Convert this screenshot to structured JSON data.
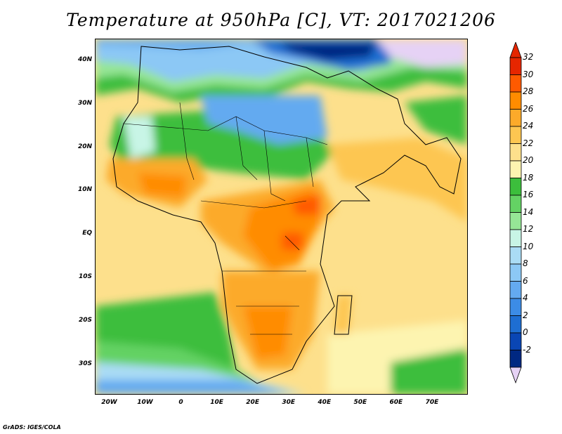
{
  "title": "Temperature at 950hPa [C], VT: 2017021206",
  "credit": "GrADS: IGES/COLA",
  "map": {
    "projection": "latlon",
    "lon_range": [
      -24,
      80
    ],
    "lat_range": [
      -37,
      45
    ],
    "lat_labels": [
      {
        "lat": 40,
        "text": "40N"
      },
      {
        "lat": 30,
        "text": "30N"
      },
      {
        "lat": 20,
        "text": "20N"
      },
      {
        "lat": 10,
        "text": "10N"
      },
      {
        "lat": 0,
        "text": "EQ"
      },
      {
        "lat": -10,
        "text": "10S"
      },
      {
        "lat": -20,
        "text": "20S"
      },
      {
        "lat": -30,
        "text": "30S"
      }
    ],
    "lon_labels": [
      {
        "lon": -20,
        "text": "20W"
      },
      {
        "lon": -10,
        "text": "10W"
      },
      {
        "lon": 0,
        "text": "0"
      },
      {
        "lon": 10,
        "text": "10E"
      },
      {
        "lon": 20,
        "text": "20E"
      },
      {
        "lon": 30,
        "text": "30E"
      },
      {
        "lon": 40,
        "text": "40E"
      },
      {
        "lon": 50,
        "text": "50E"
      },
      {
        "lon": 60,
        "text": "60E"
      },
      {
        "lon": 70,
        "text": "70E"
      }
    ]
  },
  "colorbar": {
    "labels": [
      "32",
      "30",
      "28",
      "26",
      "24",
      "22",
      "20",
      "18",
      "16",
      "14",
      "12",
      "10",
      "8",
      "6",
      "4",
      "2",
      "0",
      "-2"
    ],
    "colors": [
      "#e62600",
      "#ff5a00",
      "#ff8c00",
      "#fcaa2a",
      "#fdc651",
      "#fde08c",
      "#fdf4b0",
      "#3cbe3c",
      "#64d264",
      "#96e696",
      "#c8f5e6",
      "#aadcf5",
      "#8cc8f5",
      "#64aaf0",
      "#3c8ce6",
      "#1e6ed2",
      "#0a46b4",
      "#002882"
    ],
    "top_color": "#e62600",
    "bottom_color": "#e6d2f5"
  }
}
